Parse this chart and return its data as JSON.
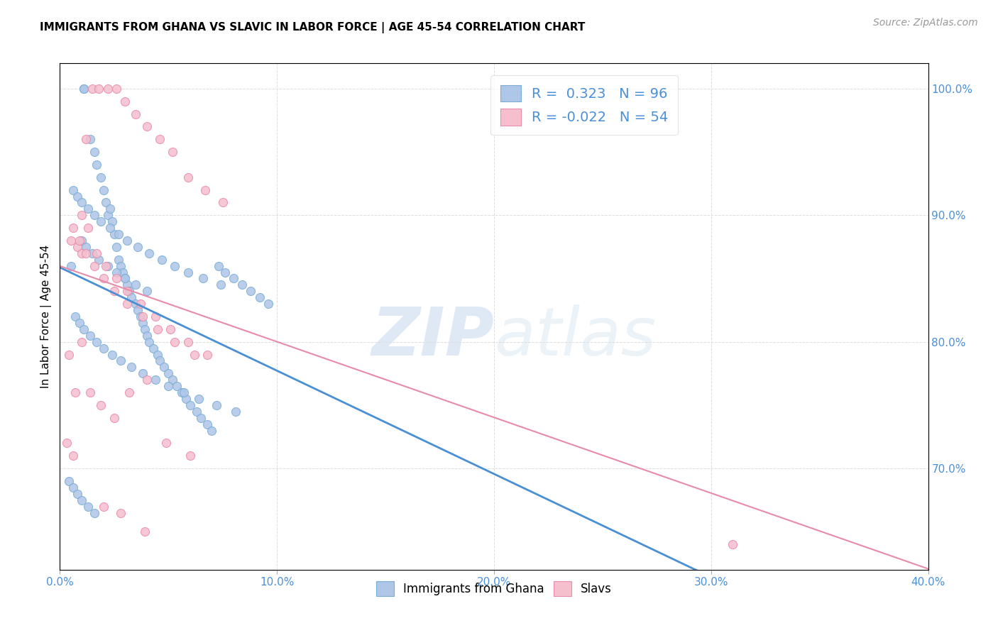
{
  "title": "IMMIGRANTS FROM GHANA VS SLAVIC IN LABOR FORCE | AGE 45-54 CORRELATION CHART",
  "source": "Source: ZipAtlas.com",
  "ylabel_label": "In Labor Force | Age 45-54",
  "legend_label1": "Immigrants from Ghana",
  "legend_label2": "Slavs",
  "r1": "0.323",
  "n1": "96",
  "r2": "-0.022",
  "n2": "54",
  "ghana_color": "#aec6e8",
  "slavs_color": "#f5bfce",
  "ghana_edge": "#7aadd4",
  "slavs_edge": "#e88aaa",
  "line_ghana": "#4a8fd4",
  "line_slavs": "#e88aaa",
  "watermark_zip": "ZIP",
  "watermark_atlas": "atlas",
  "background_color": "#ffffff",
  "ghana_points_x": [
    0.5,
    1.1,
    1.1,
    1.4,
    1.6,
    1.7,
    1.9,
    2.0,
    2.1,
    2.2,
    2.3,
    2.4,
    2.5,
    2.6,
    2.7,
    2.8,
    2.9,
    3.0,
    3.1,
    3.2,
    3.3,
    3.5,
    3.6,
    3.7,
    3.8,
    3.9,
    4.0,
    4.1,
    4.3,
    4.5,
    4.6,
    4.8,
    5.0,
    5.2,
    5.4,
    5.6,
    5.8,
    6.0,
    6.3,
    6.5,
    6.8,
    7.0,
    7.3,
    7.6,
    8.0,
    8.4,
    8.8,
    9.2,
    9.6,
    1.0,
    1.2,
    1.5,
    1.8,
    2.2,
    2.6,
    3.0,
    3.5,
    4.0,
    0.6,
    0.8,
    1.0,
    1.3,
    1.6,
    1.9,
    2.3,
    2.7,
    3.1,
    3.6,
    4.1,
    4.7,
    5.3,
    5.9,
    6.6,
    7.4,
    0.7,
    0.9,
    1.1,
    1.4,
    1.7,
    2.0,
    2.4,
    2.8,
    3.3,
    3.8,
    4.4,
    5.0,
    5.7,
    6.4,
    7.2,
    8.1,
    0.4,
    0.6,
    0.8,
    1.0,
    1.3,
    1.6
  ],
  "ghana_points_y": [
    86.0,
    100.0,
    100.0,
    96.0,
    95.0,
    94.0,
    93.0,
    92.0,
    91.0,
    90.0,
    90.5,
    89.5,
    88.5,
    87.5,
    86.5,
    86.0,
    85.5,
    85.0,
    84.5,
    84.0,
    83.5,
    83.0,
    82.5,
    82.0,
    81.5,
    81.0,
    80.5,
    80.0,
    79.5,
    79.0,
    78.5,
    78.0,
    77.5,
    77.0,
    76.5,
    76.0,
    75.5,
    75.0,
    74.5,
    74.0,
    73.5,
    73.0,
    86.0,
    85.5,
    85.0,
    84.5,
    84.0,
    83.5,
    83.0,
    88.0,
    87.5,
    87.0,
    86.5,
    86.0,
    85.5,
    85.0,
    84.5,
    84.0,
    92.0,
    91.5,
    91.0,
    90.5,
    90.0,
    89.5,
    89.0,
    88.5,
    88.0,
    87.5,
    87.0,
    86.5,
    86.0,
    85.5,
    85.0,
    84.5,
    82.0,
    81.5,
    81.0,
    80.5,
    80.0,
    79.5,
    79.0,
    78.5,
    78.0,
    77.5,
    77.0,
    76.5,
    76.0,
    75.5,
    75.0,
    74.5,
    69.0,
    68.5,
    68.0,
    67.5,
    67.0,
    66.5
  ],
  "slavs_points_x": [
    0.5,
    0.8,
    1.0,
    1.2,
    1.5,
    1.8,
    2.2,
    2.6,
    3.0,
    3.5,
    4.0,
    4.6,
    5.2,
    5.9,
    6.7,
    7.5,
    1.0,
    1.3,
    1.7,
    2.1,
    2.6,
    3.1,
    3.7,
    4.4,
    5.1,
    5.9,
    6.8,
    0.6,
    0.9,
    1.2,
    1.6,
    2.0,
    2.5,
    3.1,
    3.8,
    4.5,
    5.3,
    6.2,
    0.4,
    0.7,
    1.0,
    1.4,
    1.9,
    2.5,
    3.2,
    4.0,
    4.9,
    6.0,
    0.3,
    0.6,
    31.0,
    2.0,
    2.8,
    3.9
  ],
  "slavs_points_y": [
    88.0,
    87.5,
    87.0,
    96.0,
    100.0,
    100.0,
    100.0,
    100.0,
    99.0,
    98.0,
    97.0,
    96.0,
    95.0,
    93.0,
    92.0,
    91.0,
    90.0,
    89.0,
    87.0,
    86.0,
    85.0,
    84.0,
    83.0,
    82.0,
    81.0,
    80.0,
    79.0,
    89.0,
    88.0,
    87.0,
    86.0,
    85.0,
    84.0,
    83.0,
    82.0,
    81.0,
    80.0,
    79.0,
    79.0,
    76.0,
    80.0,
    76.0,
    75.0,
    74.0,
    76.0,
    77.0,
    72.0,
    71.0,
    72.0,
    71.0,
    64.0,
    67.0,
    66.5,
    65.0
  ],
  "xlim": [
    0.0,
    40.0
  ],
  "ylim": [
    62.0,
    102.0
  ],
  "xticks": [
    0.0,
    10.0,
    20.0,
    30.0,
    40.0
  ],
  "yticks": [
    70.0,
    80.0,
    90.0,
    100.0
  ],
  "xtick_labels": [
    "0.0%",
    "10.0%",
    "20.0%",
    "30.0%",
    "40.0%"
  ],
  "ytick_labels": [
    "70.0%",
    "80.0%",
    "90.0%",
    "100.0%"
  ]
}
